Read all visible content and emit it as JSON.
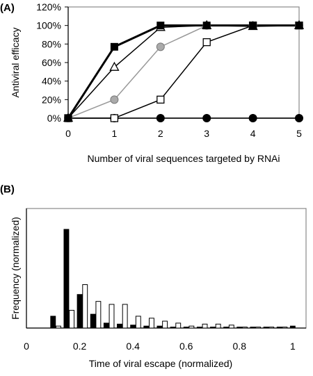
{
  "chart_data": [
    {
      "panel_label": "(A)",
      "type": "line",
      "xlabel": "Number of viral sequences targeted by RNAi",
      "ylabel": "Antiviral efficacy",
      "x": [
        0,
        1,
        2,
        3,
        4,
        5
      ],
      "xlim": [
        0,
        5
      ],
      "ylim": [
        0,
        120
      ],
      "xticks": [
        "0",
        "1",
        "2",
        "3",
        "4",
        "5"
      ],
      "yticks": [
        "0%",
        "20%",
        "40%",
        "60%",
        "80%",
        "100%",
        "120%"
      ],
      "grid": false,
      "series": [
        {
          "marker": "filled-square",
          "line_color": "#000000",
          "line_width": 3,
          "values": [
            0,
            77,
            100,
            100,
            100,
            100
          ]
        },
        {
          "marker": "open-triangle",
          "line_color": "#000000",
          "line_width": 1.5,
          "values": [
            0,
            55,
            98,
            100,
            99,
            100
          ]
        },
        {
          "marker": "gray-circle",
          "line_color": "#999999",
          "line_width": 1.5,
          "values": [
            0,
            20,
            77,
            100,
            100,
            100
          ]
        },
        {
          "marker": "open-square",
          "line_color": "#000000",
          "line_width": 1.5,
          "values": [
            0,
            0,
            20,
            82,
            100,
            100
          ]
        },
        {
          "marker": "filled-circle",
          "line_color": "#000000",
          "line_width": 1.5,
          "values": [
            0,
            0,
            0,
            0,
            0,
            0
          ]
        }
      ]
    },
    {
      "panel_label": "(B)",
      "type": "bar",
      "xlabel": "Time of viral escape (normalized)",
      "ylabel": "Frequency (normalized)",
      "xlim": [
        0,
        1.05
      ],
      "xticks": [
        "0",
        "0.2",
        "0.4",
        "0.6",
        "0.8",
        "1"
      ],
      "ylim": [
        0,
        1
      ],
      "bar_width": 0.018,
      "series": [
        {
          "fill": "#000000",
          "x": [
            0.1,
            0.15,
            0.2,
            0.25,
            0.3,
            0.35,
            0.4,
            0.45,
            0.5,
            0.55,
            0.6,
            0.65,
            0.7,
            0.75,
            0.8,
            0.85,
            0.9,
            0.95,
            1.0
          ],
          "values": [
            0.12,
            1.0,
            0.34,
            0.14,
            0.05,
            0.04,
            0.03,
            0.02,
            0.02,
            0.01,
            0.01,
            0.01,
            0.01,
            0.01,
            0.01,
            0.01,
            0.01,
            0.01,
            0.02
          ]
        },
        {
          "fill": "#ffffff",
          "x": [
            0.12,
            0.17,
            0.22,
            0.27,
            0.32,
            0.37,
            0.42,
            0.47,
            0.52,
            0.57,
            0.62,
            0.67,
            0.72,
            0.77,
            0.82,
            0.87,
            0.92,
            0.97
          ],
          "values": [
            0.02,
            0.18,
            0.44,
            0.27,
            0.24,
            0.24,
            0.12,
            0.1,
            0.07,
            0.05,
            0.02,
            0.04,
            0.04,
            0.03,
            0.01,
            0.01,
            0.01,
            0.01
          ]
        }
      ]
    }
  ]
}
